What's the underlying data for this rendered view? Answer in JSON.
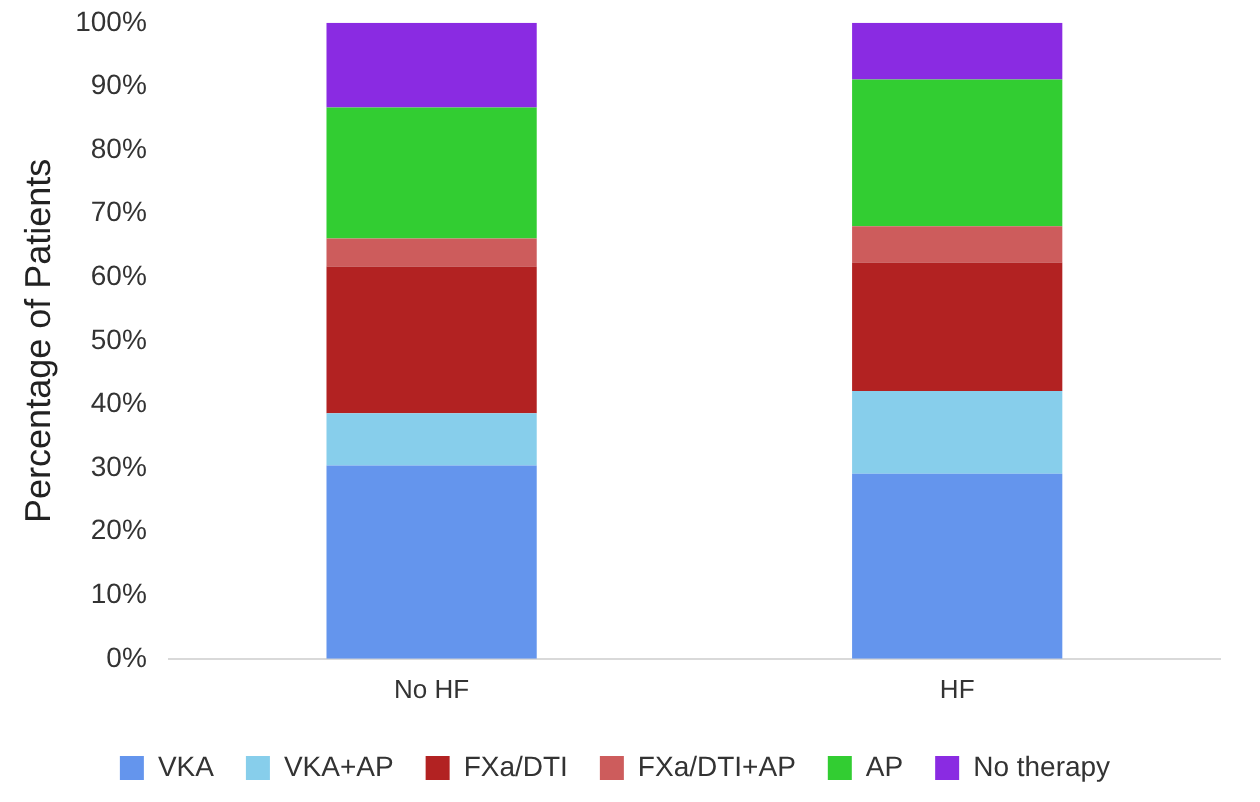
{
  "chart_data": {
    "type": "bar",
    "stacked": true,
    "ylabel": "Percentage of Patients",
    "categories": [
      "No HF",
      "HF"
    ],
    "series": [
      {
        "name": "VKA",
        "color": "#6495ed",
        "values": [
          30.4,
          29.1
        ]
      },
      {
        "name": "VKA+AP",
        "color": "#87ceeb",
        "values": [
          8.2,
          13.0
        ]
      },
      {
        "name": "FXa/DTI",
        "color": "#b22222",
        "values": [
          23.1,
          20.2
        ]
      },
      {
        "name": "FXa/DTI+AP",
        "color": "#cd5c5c",
        "values": [
          4.4,
          5.7
        ]
      },
      {
        "name": "AP",
        "color": "#32cd32",
        "values": [
          20.6,
          23.1
        ]
      },
      {
        "name": "No therapy",
        "color": "#8a2be2",
        "values": [
          13.3,
          8.9
        ]
      }
    ],
    "ylim": [
      0,
      100
    ],
    "yticks": [
      {
        "value": 0,
        "label": "0%"
      },
      {
        "value": 10,
        "label": "10%"
      },
      {
        "value": 20,
        "label": "20%"
      },
      {
        "value": 30,
        "label": "30%"
      },
      {
        "value": 40,
        "label": "40%"
      },
      {
        "value": 50,
        "label": "50%"
      },
      {
        "value": 60,
        "label": "60%"
      },
      {
        "value": 70,
        "label": "70%"
      },
      {
        "value": 80,
        "label": "80%"
      },
      {
        "value": 90,
        "label": "90%"
      },
      {
        "value": 100,
        "label": "100%"
      }
    ],
    "grid": false,
    "legend": "bottom"
  }
}
